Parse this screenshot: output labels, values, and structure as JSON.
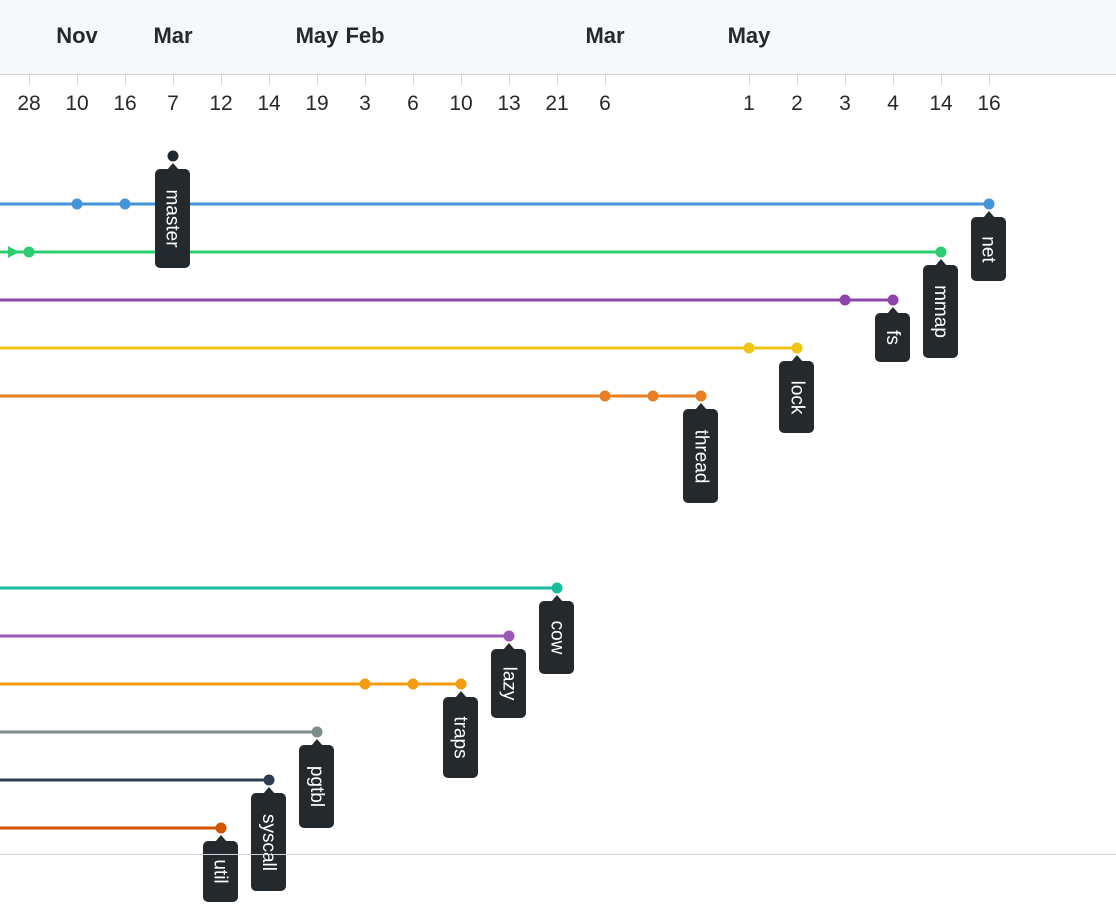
{
  "months": [
    {
      "key": "nov",
      "label": "Nov"
    },
    {
      "key": "mar1",
      "label": "Mar"
    },
    {
      "key": "may1",
      "label": "May"
    },
    {
      "key": "feb",
      "label": "Feb"
    },
    {
      "key": "mar2",
      "label": "Mar"
    },
    {
      "key": "may2",
      "label": "May"
    }
  ],
  "days": [
    "28",
    "10",
    "16",
    "7",
    "12",
    "14",
    "19",
    "3",
    "6",
    "10",
    "13",
    "21",
    "6",
    "1",
    "2",
    "3",
    "4",
    "14",
    "16"
  ],
  "colors": {
    "blue": "#4393d8",
    "green": "#2ecc71",
    "purple": "#8e44ad",
    "yellow": "#f1c40f",
    "orange": "#e67e22",
    "teal": "#1abc9c",
    "lavender": "#9b59b6",
    "amber": "#f39c12",
    "gray": "#7f8c8d",
    "navy": "#2c3e50",
    "rust": "#d35400",
    "head": "#24292e"
  },
  "branches": [
    {
      "key": "net",
      "name": "net",
      "color": "blue"
    },
    {
      "key": "mmap",
      "name": "mmap",
      "color": "green"
    },
    {
      "key": "fs",
      "name": "fs",
      "color": "purple"
    },
    {
      "key": "lock",
      "name": "lock",
      "color": "yellow"
    },
    {
      "key": "thread",
      "name": "thread",
      "color": "orange"
    },
    {
      "key": "cow",
      "name": "cow",
      "color": "teal"
    },
    {
      "key": "lazy",
      "name": "lazy",
      "color": "lavender"
    },
    {
      "key": "traps",
      "name": "traps",
      "color": "amber"
    },
    {
      "key": "pgtbl",
      "name": "pgtbl",
      "color": "gray"
    },
    {
      "key": "syscall",
      "name": "syscall",
      "color": "navy"
    },
    {
      "key": "util",
      "name": "util",
      "color": "rust"
    },
    {
      "key": "master",
      "name": "master",
      "color": "head"
    }
  ]
}
